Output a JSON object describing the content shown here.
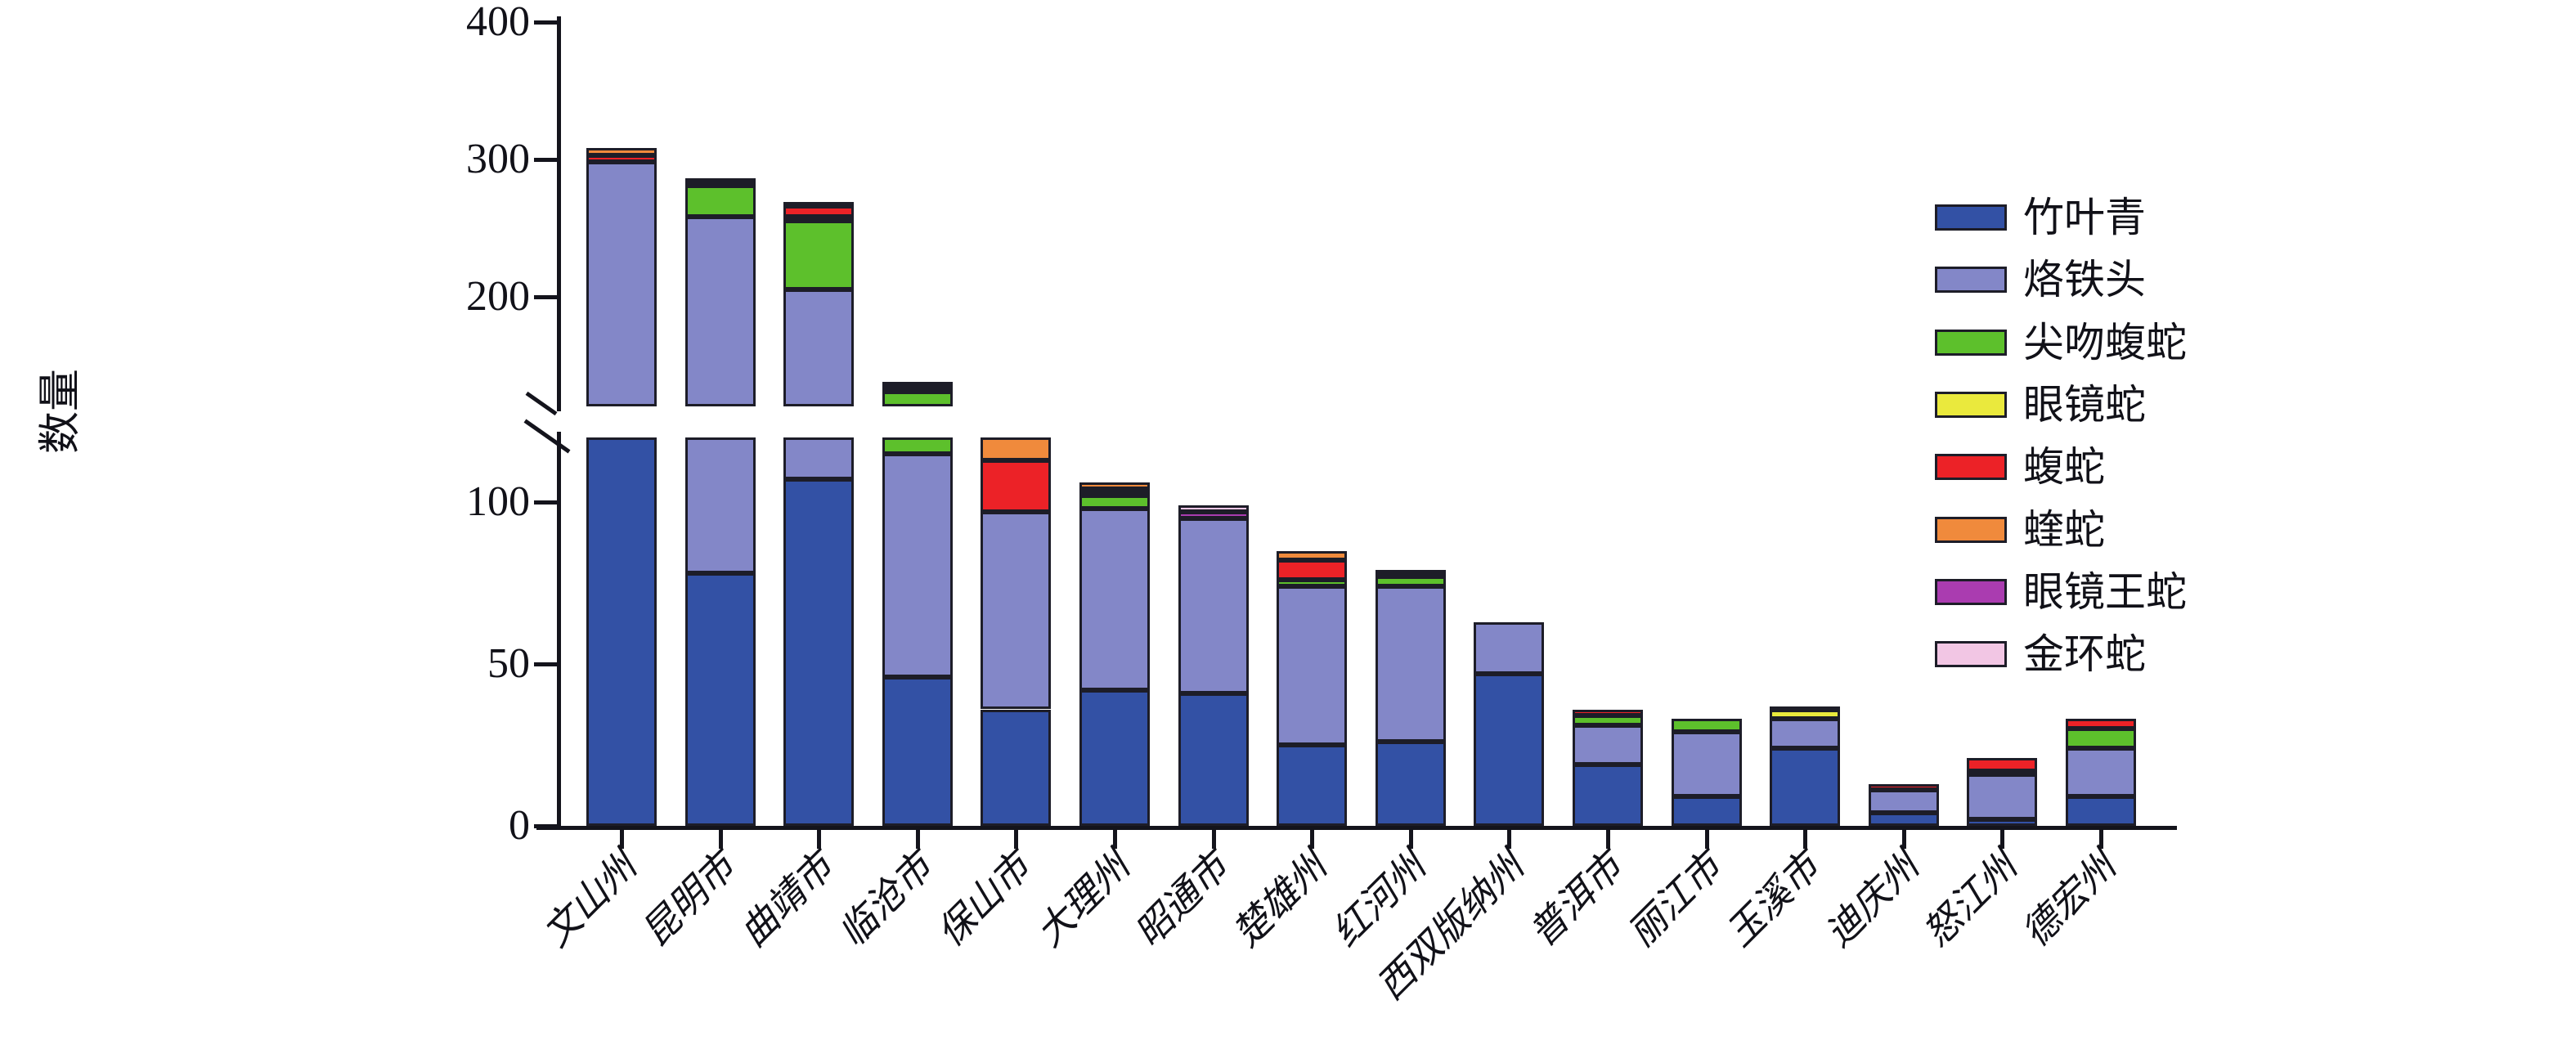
{
  "chart_data": {
    "type": "bar",
    "stacked": true,
    "title": "",
    "xlabel": "",
    "ylabel": "数量",
    "grid": false,
    "legend_position": "right",
    "outline_color": "#1d1d28",
    "categories": [
      "文山州",
      "昆明市",
      "曲靖市",
      "临沧市",
      "保山市",
      "大理州",
      "昭通市",
      "楚雄州",
      "红河州",
      "西双版纳州",
      "普洱市",
      "丽江市",
      "玉溪市",
      "迪庆州",
      "怒江州",
      "德宏州"
    ],
    "series": [
      {
        "name": "竹叶青",
        "color": "#3351a5",
        "values": [
          120,
          78,
          107,
          46,
          36,
          42,
          41,
          25,
          26,
          47,
          19,
          9,
          24,
          4,
          2,
          9
        ]
      },
      {
        "name": "烙铁头",
        "color": "#8387c8",
        "values": [
          178,
          180,
          98,
          69,
          61,
          56,
          54,
          49,
          48,
          16,
          12,
          20,
          9,
          7,
          14,
          15
        ]
      },
      {
        "name": "尖吻蝮蛇",
        "color": "#5dc02c",
        "values": [
          0,
          23,
          50,
          16,
          0,
          4,
          0,
          2,
          3,
          0,
          3,
          4,
          0,
          0,
          1,
          6
        ]
      },
      {
        "name": "眼镜蛇",
        "color": "#eae93d",
        "values": [
          0,
          0,
          3,
          0,
          0,
          1,
          0,
          0,
          0,
          0,
          0,
          0,
          3,
          0,
          0,
          0
        ]
      },
      {
        "name": "蝮蛇",
        "color": "#ec2227",
        "values": [
          5,
          3,
          8,
          2,
          16,
          1,
          0,
          6,
          1,
          0,
          2,
          0,
          0,
          2,
          4,
          3
        ]
      },
      {
        "name": "蝰蛇",
        "color": "#f08a3c",
        "values": [
          5,
          0,
          0,
          0,
          7,
          2,
          0,
          3,
          1,
          0,
          0,
          0,
          1,
          0,
          0,
          0
        ]
      },
      {
        "name": "眼镜王蛇",
        "color": "#aa3cb0",
        "values": [
          0,
          0,
          3,
          2,
          0,
          0,
          2,
          0,
          0,
          0,
          0,
          0,
          0,
          0,
          0,
          0
        ]
      },
      {
        "name": "金环蛇",
        "color": "#f2c6e4",
        "values": [
          0,
          2,
          0,
          3,
          0,
          0,
          2,
          0,
          0,
          0,
          0,
          0,
          0,
          0,
          0,
          0
        ]
      }
    ],
    "totals": [
      308,
      286,
      269,
      138,
      120,
      106,
      99,
      85,
      79,
      63,
      36,
      33,
      37,
      13,
      21,
      33
    ],
    "y_axis": {
      "ylim": [
        0,
        400
      ],
      "lower_ticks": [
        0,
        50,
        100
      ],
      "upper_ticks": [
        200,
        300,
        400
      ],
      "break_value": 120,
      "has_axis_break": true
    }
  }
}
